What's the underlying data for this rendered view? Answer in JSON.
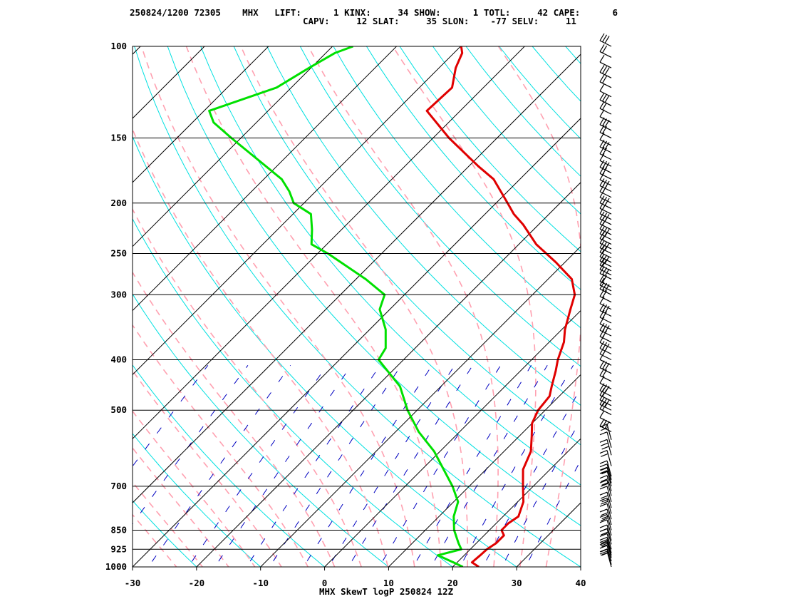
{
  "header": {
    "datetime": "250824/1200",
    "station_id": "72305",
    "station": "MHX",
    "indices": [
      {
        "label": "LIFT:",
        "value": "1"
      },
      {
        "label": "KINX:",
        "value": "34"
      },
      {
        "label": "SHOW:",
        "value": "1"
      },
      {
        "label": "TOTL:",
        "value": "42"
      },
      {
        "label": "CAPE:",
        "value": "6"
      },
      {
        "label": "CAPV:",
        "value": "12"
      },
      {
        "label": "SLAT:",
        "value": "35"
      },
      {
        "label": "SLON:",
        "value": "-77"
      },
      {
        "label": "SELV:",
        "value": "11"
      }
    ]
  },
  "footer": {
    "caption": "MHX SkewT logP 250824 12Z"
  },
  "colors": {
    "temperature": "#e00000",
    "dewpoint": "#00e000",
    "isotherm": "#000000",
    "isobar": "#000000",
    "dry_adiabat": "#00e0e0",
    "moist_adiabat": "#ffa0b0",
    "mixing_ratio": "#0000c0",
    "wind_barb": "#000000"
  },
  "chart_data": {
    "type": "line",
    "chart_kind": "skew-T log-P",
    "y_scale": "log",
    "xlim": [
      -30,
      40
    ],
    "ylim": [
      1000,
      100
    ],
    "x_ticks": [
      "-30",
      "-20",
      "-10",
      "0",
      "10",
      "20",
      "30",
      "40"
    ],
    "x_tick_values": [
      -30,
      -20,
      -10,
      0,
      10,
      20,
      30,
      40
    ],
    "pressure_levels": [
      "100",
      "150",
      "200",
      "250",
      "300",
      "400",
      "500",
      "700",
      "850",
      "925",
      "1000"
    ],
    "pressure_values": [
      100,
      150,
      200,
      250,
      300,
      400,
      500,
      700,
      850,
      925,
      1000
    ],
    "grid": true,
    "series": [
      {
        "id": "temperature",
        "points": [
          [
            1000,
            24.1
          ],
          [
            980,
            22.3
          ],
          [
            950,
            22.5
          ],
          [
            925,
            22.6
          ],
          [
            900,
            23.1
          ],
          [
            870,
            23.1
          ],
          [
            850,
            21.9
          ],
          [
            825,
            21.9
          ],
          [
            800,
            22.4
          ],
          [
            750,
            20.9
          ],
          [
            700,
            18.4
          ],
          [
            650,
            15.8
          ],
          [
            600,
            14.2
          ],
          [
            560,
            11.9
          ],
          [
            530,
            10.0
          ],
          [
            500,
            8.9
          ],
          [
            470,
            8.5
          ],
          [
            450,
            7.3
          ],
          [
            420,
            5.5
          ],
          [
            400,
            4.1
          ],
          [
            370,
            2.3
          ],
          [
            350,
            0.5
          ],
          [
            320,
            -1.8
          ],
          [
            300,
            -3.4
          ],
          [
            280,
            -6.3
          ],
          [
            260,
            -11.4
          ],
          [
            240,
            -17.3
          ],
          [
            220,
            -22.4
          ],
          [
            210,
            -25.5
          ],
          [
            200,
            -28.2
          ],
          [
            180,
            -34.1
          ],
          [
            170,
            -38.5
          ],
          [
            150,
            -47.5
          ],
          [
            133,
            -55.2
          ],
          [
            120,
            -54.9
          ],
          [
            110,
            -57.4
          ],
          [
            103,
            -58.7
          ],
          [
            100,
            -59.9
          ]
        ]
      },
      {
        "id": "dewpoint",
        "points": [
          [
            1000,
            21.6
          ],
          [
            980,
            19.4
          ],
          [
            950,
            15.9
          ],
          [
            925,
            18.6
          ],
          [
            900,
            17.2
          ],
          [
            850,
            14.5
          ],
          [
            800,
            12.3
          ],
          [
            750,
            10.7
          ],
          [
            700,
            7.4
          ],
          [
            650,
            3.4
          ],
          [
            600,
            -0.9
          ],
          [
            550,
            -6.4
          ],
          [
            500,
            -11.5
          ],
          [
            450,
            -16.4
          ],
          [
            400,
            -23.9
          ],
          [
            380,
            -24.6
          ],
          [
            350,
            -27.5
          ],
          [
            320,
            -31.6
          ],
          [
            300,
            -33.1
          ],
          [
            280,
            -38.5
          ],
          [
            250,
            -48.4
          ],
          [
            240,
            -52.4
          ],
          [
            225,
            -54.6
          ],
          [
            210,
            -57.2
          ],
          [
            200,
            -61.6
          ],
          [
            190,
            -64.1
          ],
          [
            180,
            -67.2
          ],
          [
            150,
            -81.5
          ],
          [
            140,
            -86.7
          ],
          [
            133,
            -89.2
          ],
          [
            120,
            -82.3
          ],
          [
            110,
            -80.3
          ],
          [
            103,
            -78.6
          ],
          [
            100,
            -76.8
          ]
        ]
      }
    ],
    "wind_barb_pressures": [
      1000,
      990,
      975,
      960,
      950,
      940,
      925,
      905,
      890,
      870,
      850,
      830,
      810,
      790,
      770,
      750,
      730,
      715,
      700,
      690,
      680,
      670,
      640,
      610,
      590,
      570,
      550,
      530,
      510,
      500,
      490,
      480,
      470,
      455,
      440,
      425,
      410,
      400,
      390,
      380,
      370,
      360,
      350,
      340,
      330,
      320,
      310,
      300,
      295,
      290,
      280,
      275,
      270,
      265,
      260,
      255,
      250,
      245,
      240,
      235,
      230,
      225,
      220,
      215,
      210,
      205,
      200,
      195,
      190,
      185,
      180,
      175,
      170,
      165,
      160,
      155,
      150,
      145,
      140,
      135,
      130,
      125,
      120,
      115,
      110,
      105,
      100
    ]
  }
}
